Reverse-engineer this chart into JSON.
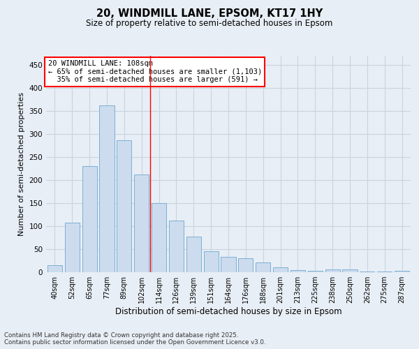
{
  "title": "20, WINDMILL LANE, EPSOM, KT17 1HY",
  "subtitle": "Size of property relative to semi-detached houses in Epsom",
  "xlabel": "Distribution of semi-detached houses by size in Epsom",
  "ylabel": "Number of semi-detached properties",
  "categories": [
    "40sqm",
    "52sqm",
    "65sqm",
    "77sqm",
    "89sqm",
    "102sqm",
    "114sqm",
    "126sqm",
    "139sqm",
    "151sqm",
    "164sqm",
    "176sqm",
    "188sqm",
    "201sqm",
    "213sqm",
    "225sqm",
    "238sqm",
    "250sqm",
    "262sqm",
    "275sqm",
    "287sqm"
  ],
  "values": [
    15,
    108,
    230,
    362,
    286,
    213,
    150,
    112,
    78,
    45,
    33,
    30,
    21,
    10,
    5,
    3,
    6,
    6,
    2,
    1,
    3
  ],
  "bar_color": "#ccdcee",
  "bar_edge_color": "#7bafd4",
  "grid_color": "#c8d4e0",
  "bg_color": "#e8eef5",
  "vline_color": "red",
  "vline_index": 5.5,
  "annotation_line1": "20 WINDMILL LANE: 108sqm",
  "annotation_line2": "← 65% of semi-detached houses are smaller (1,103)",
  "annotation_line3": "  35% of semi-detached houses are larger (591) →",
  "footer1": "Contains HM Land Registry data © Crown copyright and database right 2025.",
  "footer2": "Contains public sector information licensed under the Open Government Licence v3.0.",
  "ylim": [
    0,
    470
  ],
  "yticks": [
    0,
    50,
    100,
    150,
    200,
    250,
    300,
    350,
    400,
    450
  ],
  "title_fontsize": 10.5,
  "subtitle_fontsize": 8.5,
  "ylabel_fontsize": 8,
  "xlabel_fontsize": 8.5,
  "tick_fontsize": 7,
  "annotation_fontsize": 7.5,
  "footer_fontsize": 6.2
}
